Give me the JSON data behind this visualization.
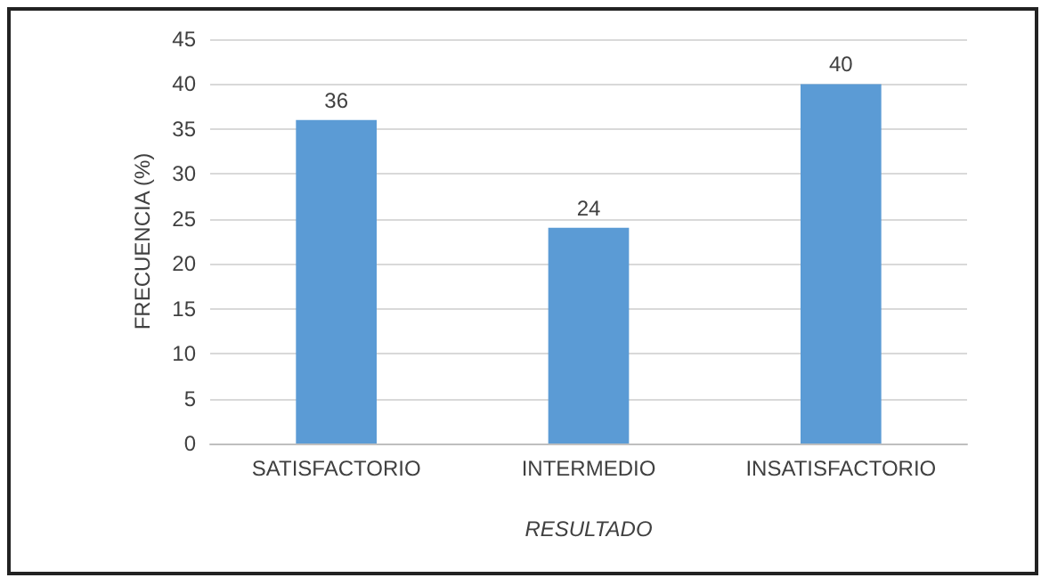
{
  "chart_data": {
    "type": "bar",
    "xlabel": "RESULTADO",
    "ylabel": "FRECUENCIA (%)",
    "categories": [
      "SATISFACTORIO",
      "INTERMEDIO",
      "INSATISFACTORIO"
    ],
    "values": [
      36,
      24,
      40
    ],
    "color": "#5b9bd5",
    "ylim": [
      0,
      45
    ],
    "yticks": [
      0,
      5,
      10,
      15,
      20,
      25,
      30,
      35,
      40,
      45
    ],
    "grid": "y",
    "data_labels": true
  }
}
